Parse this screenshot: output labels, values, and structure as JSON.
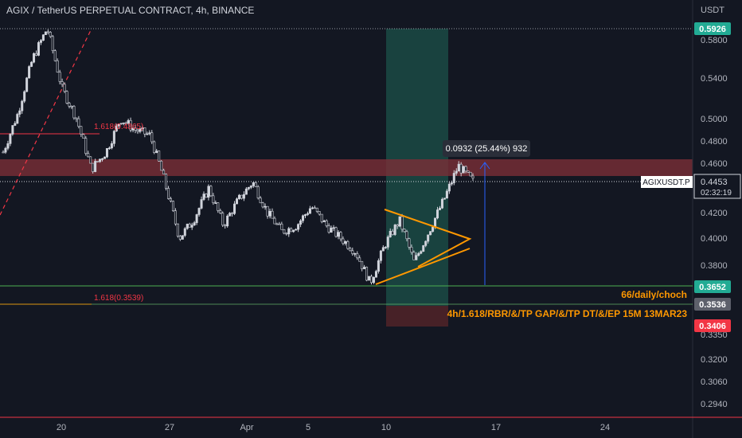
{
  "header": {
    "title": "AGIX / TetherUS PERPETUAL CONTRACT, 4h, BINANCE",
    "currency": "USDT"
  },
  "colors": {
    "background": "#131722",
    "candle": "#d1d4dc",
    "resistance_zone": "#7a2e37",
    "green_zone": "#1b4a44",
    "red_zone": "#4a2228",
    "triangle": "#ff9800",
    "price_tag_green": "#22ab94",
    "price_tag_red": "#f23645",
    "measure_blue": "#2962ff"
  },
  "chart_data": {
    "type": "candlestick",
    "title": "AGIX / TetherUS PERPETUAL CONTRACT, 4h, BINANCE",
    "ylabel": "USDT",
    "ylim": [
      0.285,
      0.61
    ],
    "y_scale": "log",
    "x_ticks": [
      "20",
      "27",
      "Apr",
      "5",
      "10",
      "17",
      "24"
    ],
    "y_ticks": [
      "0.5800",
      "0.5400",
      "0.5000",
      "0.4800",
      "0.4600",
      "0.4200",
      "0.4000",
      "0.3800",
      "0.3350",
      "0.3200",
      "0.3060",
      "0.2940"
    ],
    "price_close_path": [
      {
        "date": "Mar 16",
        "price": 0.47
      },
      {
        "date": "Mar 17",
        "price": 0.505
      },
      {
        "date": "Mar 18",
        "price": 0.56
      },
      {
        "date": "Mar 18",
        "price": 0.592
      },
      {
        "date": "Mar 19",
        "price": 0.53
      },
      {
        "date": "Mar 20",
        "price": 0.5
      },
      {
        "date": "Mar 21",
        "price": 0.455
      },
      {
        "date": "Mar 22",
        "price": 0.47
      },
      {
        "date": "Mar 23",
        "price": 0.5
      },
      {
        "date": "Mar 24",
        "price": 0.49
      },
      {
        "date": "Mar 25",
        "price": 0.485
      },
      {
        "date": "Mar 26",
        "price": 0.445
      },
      {
        "date": "Mar 27",
        "price": 0.4
      },
      {
        "date": "Mar 28",
        "price": 0.415
      },
      {
        "date": "Mar 29",
        "price": 0.44
      },
      {
        "date": "Mar 30",
        "price": 0.41
      },
      {
        "date": "Mar 31",
        "price": 0.43
      },
      {
        "date": "Apr 1",
        "price": 0.445
      },
      {
        "date": "Apr 2",
        "price": 0.42
      },
      {
        "date": "Apr 3",
        "price": 0.405
      },
      {
        "date": "Apr 4",
        "price": 0.41
      },
      {
        "date": "Apr 5",
        "price": 0.425
      },
      {
        "date": "Apr 6",
        "price": 0.41
      },
      {
        "date": "Apr 7",
        "price": 0.4
      },
      {
        "date": "Apr 8",
        "price": 0.39
      },
      {
        "date": "Apr 9",
        "price": 0.367
      },
      {
        "date": "Apr 10",
        "price": 0.395
      },
      {
        "date": "Apr 11",
        "price": 0.414
      },
      {
        "date": "Apr 12",
        "price": 0.382
      },
      {
        "date": "Apr 13",
        "price": 0.405
      },
      {
        "date": "Apr 14",
        "price": 0.43
      },
      {
        "date": "Apr 14",
        "price": 0.458
      },
      {
        "date": "Apr 15",
        "price": 0.4453
      }
    ],
    "levels": [
      {
        "label": "0.5926",
        "price": 0.5926,
        "style": "dotted"
      },
      {
        "label": "0.3652",
        "price": 0.3652,
        "style": "green"
      },
      {
        "label": "0.3536",
        "price": 0.3536,
        "style": "gray"
      },
      {
        "label": "0.3406",
        "price": 0.3406,
        "style": "red"
      }
    ],
    "resistance_zone": [
      0.451,
      0.464
    ],
    "current_price": 0.4453,
    "symbol_tag": "AGIXUSDT.P",
    "countdown": "02:32:19",
    "fib_labels": [
      "1.618(0.4865)",
      "1.618(0.3539)"
    ],
    "measure": {
      "text": "0.0932 (25.44%) 932"
    },
    "annotations": [
      "66/daily/choch",
      "4h/1.618/RBR/&/TP GAP/&/TP DT/&/EP 15M 13MAR23"
    ],
    "grid": false
  }
}
